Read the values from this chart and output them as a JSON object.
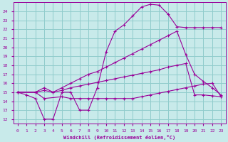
{
  "xlabel": "Windchill (Refroidissement éolien,°C)",
  "ylabel": "",
  "xlim": [
    -0.5,
    23.5
  ],
  "ylim": [
    11.5,
    25.0
  ],
  "xticks": [
    0,
    1,
    2,
    3,
    4,
    5,
    6,
    7,
    8,
    9,
    10,
    11,
    12,
    13,
    14,
    15,
    16,
    17,
    18,
    19,
    20,
    21,
    22,
    23
  ],
  "yticks": [
    12,
    13,
    14,
    15,
    16,
    17,
    18,
    19,
    20,
    21,
    22,
    23,
    24
  ],
  "bg_color": "#c8eaea",
  "line_color": "#990099",
  "grid_color": "#90cccc",
  "line1_x": [
    0,
    1,
    2,
    3,
    4,
    5,
    6,
    7,
    8,
    9,
    10,
    11,
    12,
    13,
    14,
    15,
    16,
    17,
    18,
    19,
    20,
    21,
    22,
    23
  ],
  "line1_y": [
    15.0,
    14.7,
    14.3,
    12.0,
    12.0,
    15.0,
    15.0,
    13.0,
    13.0,
    15.5,
    19.5,
    21.8,
    22.5,
    23.5,
    24.5,
    24.8,
    24.7,
    23.7,
    22.3,
    22.2,
    22.2,
    22.2,
    22.2,
    22.2
  ],
  "line2_x": [
    0,
    2,
    3,
    4,
    5,
    6,
    7,
    8,
    9,
    10,
    11,
    12,
    13,
    14,
    15,
    16,
    17,
    18,
    19,
    20,
    21,
    22,
    23
  ],
  "line2_y": [
    15.0,
    15.0,
    15.5,
    15.0,
    15.5,
    16.0,
    16.5,
    17.0,
    17.3,
    17.8,
    18.3,
    18.8,
    19.3,
    19.8,
    20.3,
    20.8,
    21.3,
    21.8,
    19.2,
    17.0,
    16.2,
    15.5,
    14.7
  ],
  "line3_x": [
    0,
    2,
    3,
    4,
    5,
    6,
    7,
    8,
    9,
    10,
    11,
    12,
    13,
    14,
    15,
    16,
    17,
    18,
    19,
    20,
    21,
    22,
    23
  ],
  "line3_y": [
    15.0,
    15.0,
    15.2,
    15.0,
    15.2,
    15.5,
    15.7,
    15.9,
    16.1,
    16.3,
    16.5,
    16.7,
    16.9,
    17.1,
    17.3,
    17.5,
    17.8,
    18.0,
    18.2,
    14.7,
    14.7,
    14.6,
    14.5
  ],
  "line4_x": [
    0,
    2,
    3,
    5,
    6,
    7,
    8,
    9,
    10,
    11,
    12,
    13,
    14,
    15,
    16,
    17,
    18,
    19,
    20,
    21,
    22,
    23
  ],
  "line4_y": [
    15.0,
    15.0,
    14.3,
    14.5,
    14.3,
    14.3,
    14.3,
    14.3,
    14.3,
    14.3,
    14.3,
    14.3,
    14.5,
    14.7,
    14.9,
    15.1,
    15.3,
    15.5,
    15.7,
    15.9,
    16.0,
    14.5
  ]
}
